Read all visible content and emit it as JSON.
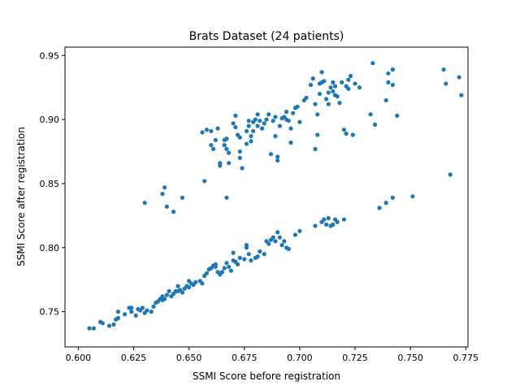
{
  "chart_data": {
    "type": "scatter",
    "title": "Brats Dataset (24 patients)",
    "xlabel": "SSMI Score before registration",
    "ylabel": "SSMI Score after registration",
    "xlim": [
      0.594,
      0.776
    ],
    "ylim": [
      0.7225,
      0.9565
    ],
    "xticks": [
      "0.600",
      "0.625",
      "0.650",
      "0.675",
      "0.700",
      "0.725",
      "0.750",
      "0.775"
    ],
    "yticks": [
      "0.75",
      "0.80",
      "0.85",
      "0.90",
      "0.95"
    ],
    "grid": false,
    "legend": "none",
    "point_color": "#1f77b4",
    "series": [
      {
        "points": [
          [
            0.605,
            0.737
          ],
          [
            0.607,
            0.737
          ],
          [
            0.61,
            0.742
          ],
          [
            0.611,
            0.741
          ],
          [
            0.614,
            0.739
          ],
          [
            0.616,
            0.74
          ],
          [
            0.617,
            0.744
          ],
          [
            0.618,
            0.75
          ],
          [
            0.618,
            0.745
          ],
          [
            0.621,
            0.748
          ],
          [
            0.623,
            0.753
          ],
          [
            0.624,
            0.753
          ],
          [
            0.624,
            0.75
          ],
          [
            0.626,
            0.747
          ],
          [
            0.627,
            0.752
          ],
          [
            0.628,
            0.751
          ],
          [
            0.629,
            0.753
          ],
          [
            0.63,
            0.749
          ],
          [
            0.631,
            0.751
          ],
          [
            0.633,
            0.75
          ],
          [
            0.634,
            0.754
          ],
          [
            0.635,
            0.757
          ],
          [
            0.636,
            0.758
          ],
          [
            0.637,
            0.76
          ],
          [
            0.638,
            0.762
          ],
          [
            0.638,
            0.759
          ],
          [
            0.639,
            0.76
          ],
          [
            0.64,
            0.763
          ],
          [
            0.641,
            0.766
          ],
          [
            0.642,
            0.762
          ],
          [
            0.643,
            0.764
          ],
          [
            0.644,
            0.766
          ],
          [
            0.645,
            0.77
          ],
          [
            0.645,
            0.766
          ],
          [
            0.646,
            0.767
          ],
          [
            0.647,
            0.765
          ],
          [
            0.648,
            0.768
          ],
          [
            0.649,
            0.77
          ],
          [
            0.65,
            0.774
          ],
          [
            0.65,
            0.769
          ],
          [
            0.651,
            0.772
          ],
          [
            0.652,
            0.771
          ],
          [
            0.653,
            0.773
          ],
          [
            0.655,
            0.774
          ],
          [
            0.656,
            0.772
          ],
          [
            0.657,
            0.778
          ],
          [
            0.658,
            0.78
          ],
          [
            0.659,
            0.783
          ],
          [
            0.66,
            0.784
          ],
          [
            0.661,
            0.786
          ],
          [
            0.662,
            0.785
          ],
          [
            0.662,
            0.787
          ],
          [
            0.663,
            0.781
          ],
          [
            0.664,
            0.779
          ],
          [
            0.665,
            0.781
          ],
          [
            0.666,
            0.784
          ],
          [
            0.667,
            0.788
          ],
          [
            0.668,
            0.785
          ],
          [
            0.669,
            0.782
          ],
          [
            0.67,
            0.79
          ],
          [
            0.67,
            0.796
          ],
          [
            0.671,
            0.789
          ],
          [
            0.672,
            0.787
          ],
          [
            0.673,
            0.792
          ],
          [
            0.675,
            0.791
          ],
          [
            0.676,
            0.8
          ],
          [
            0.676,
            0.802
          ],
          [
            0.677,
            0.795
          ],
          [
            0.678,
            0.79
          ],
          [
            0.68,
            0.792
          ],
          [
            0.681,
            0.793
          ],
          [
            0.682,
            0.797
          ],
          [
            0.684,
            0.795
          ],
          [
            0.685,
            0.805
          ],
          [
            0.686,
            0.803
          ],
          [
            0.687,
            0.806
          ],
          [
            0.688,
            0.808
          ],
          [
            0.689,
            0.805
          ],
          [
            0.69,
            0.812
          ],
          [
            0.691,
            0.808
          ],
          [
            0.692,
            0.802
          ],
          [
            0.693,
            0.805
          ],
          [
            0.694,
            0.8
          ],
          [
            0.695,
            0.799
          ],
          [
            0.698,
            0.81
          ],
          [
            0.7,
            0.813
          ],
          [
            0.707,
            0.817
          ],
          [
            0.71,
            0.82
          ],
          [
            0.711,
            0.822
          ],
          [
            0.712,
            0.818
          ],
          [
            0.713,
            0.823
          ],
          [
            0.714,
            0.817
          ],
          [
            0.715,
            0.818
          ],
          [
            0.716,
            0.822
          ],
          [
            0.717,
            0.82
          ],
          [
            0.72,
            0.822
          ],
          [
            0.736,
            0.831
          ],
          [
            0.739,
            0.835
          ],
          [
            0.742,
            0.839
          ],
          [
            0.751,
            0.84
          ],
          [
            0.768,
            0.857
          ],
          [
            0.63,
            0.835
          ],
          [
            0.638,
            0.842
          ],
          [
            0.639,
            0.847
          ],
          [
            0.64,
            0.832
          ],
          [
            0.643,
            0.828
          ],
          [
            0.647,
            0.839
          ],
          [
            0.657,
            0.852
          ],
          [
            0.656,
            0.89
          ],
          [
            0.658,
            0.892
          ],
          [
            0.66,
            0.891
          ],
          [
            0.66,
            0.88
          ],
          [
            0.661,
            0.877
          ],
          [
            0.662,
            0.884
          ],
          [
            0.663,
            0.893
          ],
          [
            0.664,
            0.866
          ],
          [
            0.664,
            0.864
          ],
          [
            0.666,
            0.884
          ],
          [
            0.666,
            0.88
          ],
          [
            0.667,
            0.885
          ],
          [
            0.667,
            0.877
          ],
          [
            0.668,
            0.874
          ],
          [
            0.668,
            0.866
          ],
          [
            0.667,
            0.839
          ],
          [
            0.67,
            0.897
          ],
          [
            0.671,
            0.894
          ],
          [
            0.671,
            0.903
          ],
          [
            0.672,
            0.888
          ],
          [
            0.673,
            0.886
          ],
          [
            0.673,
            0.875
          ],
          [
            0.673,
            0.87
          ],
          [
            0.674,
            0.862
          ],
          [
            0.676,
            0.891
          ],
          [
            0.676,
            0.881
          ],
          [
            0.677,
            0.899
          ],
          [
            0.677,
            0.895
          ],
          [
            0.678,
            0.887
          ],
          [
            0.678,
            0.883
          ],
          [
            0.679,
            0.891
          ],
          [
            0.679,
            0.898
          ],
          [
            0.68,
            0.9
          ],
          [
            0.681,
            0.904
          ],
          [
            0.681,
            0.895
          ],
          [
            0.682,
            0.899
          ],
          [
            0.683,
            0.893
          ],
          [
            0.684,
            0.897
          ],
          [
            0.685,
            0.9
          ],
          [
            0.686,
            0.904
          ],
          [
            0.687,
            0.873
          ],
          [
            0.688,
            0.899
          ],
          [
            0.689,
            0.887
          ],
          [
            0.689,
            0.902
          ],
          [
            0.69,
            0.868
          ],
          [
            0.69,
            0.871
          ],
          [
            0.691,
            0.895
          ],
          [
            0.692,
            0.901
          ],
          [
            0.693,
            0.902
          ],
          [
            0.694,
            0.9
          ],
          [
            0.694,
            0.906
          ],
          [
            0.695,
            0.899
          ],
          [
            0.696,
            0.882
          ],
          [
            0.696,
            0.893
          ],
          [
            0.697,
            0.905
          ],
          [
            0.698,
            0.909
          ],
          [
            0.699,
            0.91
          ],
          [
            0.7,
            0.898
          ],
          [
            0.702,
            0.915
          ],
          [
            0.703,
            0.917
          ],
          [
            0.705,
            0.927
          ],
          [
            0.706,
            0.932
          ],
          [
            0.707,
            0.912
          ],
          [
            0.707,
            0.877
          ],
          [
            0.708,
            0.888
          ],
          [
            0.708,
            0.904
          ],
          [
            0.709,
            0.92
          ],
          [
            0.709,
            0.928
          ],
          [
            0.71,
            0.929
          ],
          [
            0.71,
            0.937
          ],
          [
            0.711,
            0.93
          ],
          [
            0.712,
            0.916
          ],
          [
            0.713,
            0.921
          ],
          [
            0.713,
            0.912
          ],
          [
            0.714,
            0.925
          ],
          [
            0.715,
            0.929
          ],
          [
            0.715,
            0.922
          ],
          [
            0.716,
            0.919
          ],
          [
            0.716,
            0.926
          ],
          [
            0.717,
            0.918
          ],
          [
            0.718,
            0.913
          ],
          [
            0.719,
            0.929
          ],
          [
            0.72,
            0.892
          ],
          [
            0.721,
            0.889
          ],
          [
            0.721,
            0.926
          ],
          [
            0.722,
            0.931
          ],
          [
            0.722,
            0.924
          ],
          [
            0.723,
            0.934
          ],
          [
            0.724,
            0.888
          ],
          [
            0.725,
            0.928
          ],
          [
            0.727,
            0.925
          ],
          [
            0.732,
            0.904
          ],
          [
            0.733,
            0.944
          ],
          [
            0.734,
            0.896
          ],
          [
            0.739,
            0.915
          ],
          [
            0.74,
            0.936
          ],
          [
            0.74,
            0.929
          ],
          [
            0.742,
            0.939
          ],
          [
            0.742,
            0.927
          ],
          [
            0.744,
            0.903
          ],
          [
            0.765,
            0.939
          ],
          [
            0.766,
            0.928
          ],
          [
            0.772,
            0.933
          ],
          [
            0.773,
            0.919
          ]
        ]
      }
    ]
  }
}
